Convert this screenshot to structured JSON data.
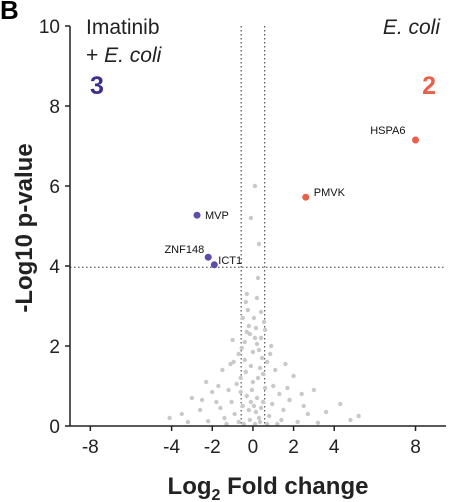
{
  "panel_label": "B",
  "chart_data": {
    "type": "scatter",
    "title": "",
    "xlabel_base": "Log",
    "xlabel_sub": "2",
    "xlabel_rest": " Fold change",
    "ylabel": "-Log10 p-value",
    "xlim": [
      -9,
      9.5
    ],
    "ylim": [
      0,
      10
    ],
    "xticks": [
      -8,
      -4,
      -2,
      0,
      2,
      4,
      8
    ],
    "yticks": [
      0,
      2,
      4,
      6,
      8,
      10
    ],
    "thresholds": {
      "y": 3.97,
      "x": [
        -0.58,
        0.58
      ]
    },
    "corner_labels": {
      "left_line1": "Imatinib",
      "left_line2_prefix": "+ ",
      "left_line2_italic": "E. coli",
      "right_italic": "E. coli"
    },
    "counts": {
      "left": "3",
      "right": "2"
    },
    "colors": {
      "left": "#5a4fb0",
      "right": "#e9604a",
      "background": "#c9c9c9",
      "count_left": "#3a2e8f",
      "count_right": "#e9604a"
    },
    "highlighted": [
      {
        "gene": "HSPA6",
        "x": 8.0,
        "y": 7.15,
        "group": "right"
      },
      {
        "gene": "PMVK",
        "x": 2.6,
        "y": 5.72,
        "group": "right"
      },
      {
        "gene": "MVP",
        "x": -2.75,
        "y": 5.27,
        "group": "left"
      },
      {
        "gene": "ZNF148",
        "x": -2.2,
        "y": 4.22,
        "group": "left"
      },
      {
        "gene": "ICT1",
        "x": -1.9,
        "y": 4.03,
        "group": "left"
      }
    ],
    "background_points": [
      {
        "x": 0.1,
        "y": 6.0
      },
      {
        "x": -0.1,
        "y": 5.2
      },
      {
        "x": 0.3,
        "y": 4.55
      },
      {
        "x": 0.25,
        "y": 3.7
      },
      {
        "x": -0.3,
        "y": 3.3
      },
      {
        "x": -0.35,
        "y": 3.1
      },
      {
        "x": 0.4,
        "y": 2.85
      },
      {
        "x": 0.05,
        "y": 2.7
      },
      {
        "x": -0.2,
        "y": 2.5
      },
      {
        "x": 0.6,
        "y": 2.4
      },
      {
        "x": -1.0,
        "y": 2.15
      },
      {
        "x": 0.9,
        "y": 2.0
      },
      {
        "x": 1.6,
        "y": 1.55
      },
      {
        "x": -1.5,
        "y": 1.4
      },
      {
        "x": 2.0,
        "y": 1.25
      },
      {
        "x": -2.3,
        "y": 1.1
      },
      {
        "x": 3.0,
        "y": 0.9
      },
      {
        "x": -3.0,
        "y": 0.7
      },
      {
        "x": 4.3,
        "y": 0.55
      },
      {
        "x": 3.6,
        "y": 0.35
      },
      {
        "x": -3.5,
        "y": 0.3
      },
      {
        "x": 5.2,
        "y": 0.25
      },
      {
        "x": -1.8,
        "y": 0.6
      },
      {
        "x": 1.3,
        "y": 0.8
      },
      {
        "x": -0.7,
        "y": 1.8
      },
      {
        "x": 0.7,
        "y": 1.6
      },
      {
        "x": -0.4,
        "y": 2.1
      },
      {
        "x": 0.2,
        "y": 3.2
      },
      {
        "x": 0.3,
        "y": 1.9
      },
      {
        "x": -0.6,
        "y": 1.2
      },
      {
        "x": 1.0,
        "y": 1.0
      },
      {
        "x": -1.2,
        "y": 0.9
      },
      {
        "x": 0.5,
        "y": 1.3
      },
      {
        "x": -0.1,
        "y": 1.5
      },
      {
        "x": 0.1,
        "y": 2.2
      },
      {
        "x": -0.25,
        "y": 2.9
      },
      {
        "x": -2.6,
        "y": 0.4
      },
      {
        "x": 2.5,
        "y": 0.5
      },
      {
        "x": -4.1,
        "y": 0.2
      },
      {
        "x": 4.8,
        "y": 0.15
      },
      {
        "x": 1.8,
        "y": 0.65
      },
      {
        "x": -2.0,
        "y": 0.85
      },
      {
        "x": 2.7,
        "y": 0.3
      },
      {
        "x": 0.0,
        "y": 1.1
      },
      {
        "x": 0.4,
        "y": 0.45
      },
      {
        "x": -0.5,
        "y": 0.5
      },
      {
        "x": 0.8,
        "y": 0.25
      },
      {
        "x": -0.9,
        "y": 0.3
      },
      {
        "x": 1.4,
        "y": 0.15
      },
      {
        "x": -1.4,
        "y": 0.2
      },
      {
        "x": 0.2,
        "y": 0.7
      },
      {
        "x": -0.3,
        "y": 0.75
      },
      {
        "x": 0.6,
        "y": 0.95
      },
      {
        "x": -0.8,
        "y": 1.05
      },
      {
        "x": 1.1,
        "y": 1.4
      },
      {
        "x": -1.1,
        "y": 1.55
      },
      {
        "x": 0.15,
        "y": 0.35
      },
      {
        "x": -0.15,
        "y": 0.15
      },
      {
        "x": 0.35,
        "y": 0.1
      },
      {
        "x": -0.45,
        "y": 0.05
      },
      {
        "x": 0.7,
        "y": 0.05
      },
      {
        "x": -0.7,
        "y": 0.1
      },
      {
        "x": 1.2,
        "y": 0.05
      },
      {
        "x": -1.3,
        "y": 0.05
      },
      {
        "x": 2.2,
        "y": 0.1
      },
      {
        "x": -2.2,
        "y": 0.12
      },
      {
        "x": 3.2,
        "y": 0.08
      },
      {
        "x": -3.2,
        "y": 0.1
      },
      {
        "x": 0.05,
        "y": 0.5
      },
      {
        "x": -0.05,
        "y": 0.9
      },
      {
        "x": 0.25,
        "y": 1.2
      },
      {
        "x": -0.35,
        "y": 1.35
      },
      {
        "x": 0.45,
        "y": 1.7
      },
      {
        "x": -0.55,
        "y": 1.95
      },
      {
        "x": 0.15,
        "y": 2.45
      },
      {
        "x": -0.15,
        "y": 2.3
      },
      {
        "x": 0.55,
        "y": 2.6
      },
      {
        "x": -0.5,
        "y": 2.7
      },
      {
        "x": 0.85,
        "y": 1.8
      },
      {
        "x": -0.95,
        "y": 1.6
      },
      {
        "x": 1.5,
        "y": 0.4
      },
      {
        "x": -1.6,
        "y": 0.45
      },
      {
        "x": 2.4,
        "y": 0.8
      },
      {
        "x": -2.5,
        "y": 0.65
      },
      {
        "x": 0.3,
        "y": 0.2
      },
      {
        "x": -0.2,
        "y": 0.4
      },
      {
        "x": 0.1,
        "y": 0.05
      },
      {
        "x": -0.1,
        "y": 0.6
      },
      {
        "x": 0.5,
        "y": 0.6
      },
      {
        "x": -0.6,
        "y": 0.85
      },
      {
        "x": 0.95,
        "y": 0.55
      },
      {
        "x": -1.05,
        "y": 0.6
      },
      {
        "x": 1.7,
        "y": 0.95
      },
      {
        "x": -1.7,
        "y": 1.0
      },
      {
        "x": 0.35,
        "y": 1.45
      },
      {
        "x": -0.4,
        "y": 1.65
      },
      {
        "x": 0.0,
        "y": 1.85
      },
      {
        "x": 0.2,
        "y": 2.05
      },
      {
        "x": -0.3,
        "y": 2.35
      },
      {
        "x": 0.4,
        "y": 2.2
      }
    ]
  }
}
